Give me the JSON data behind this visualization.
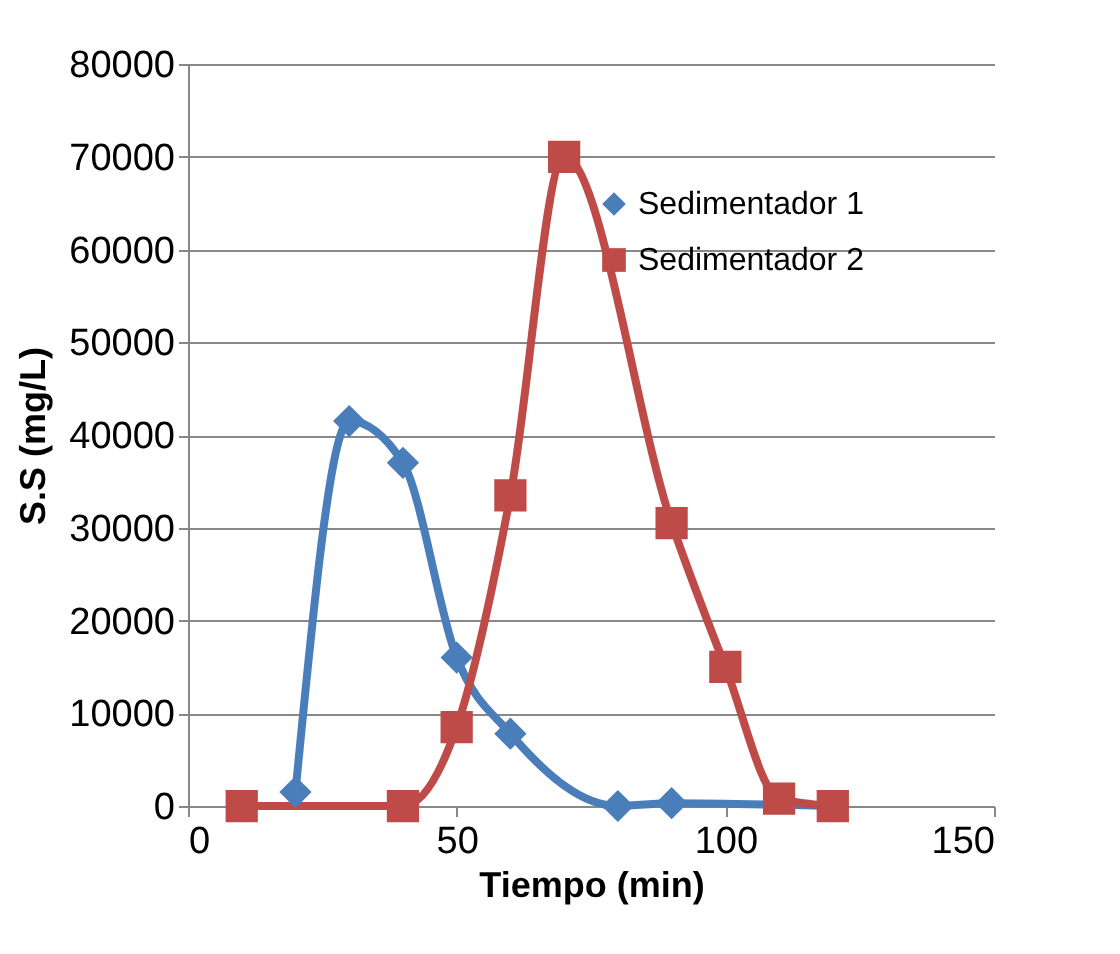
{
  "chart_data": {
    "type": "line",
    "xlabel": "Tiempo (min)",
    "ylabel": "S.S (mg/L)",
    "xlim": [
      0,
      150
    ],
    "xticks": [
      0,
      50,
      100,
      150
    ],
    "ylim": [
      0,
      80000
    ],
    "yticks": [
      0,
      10000,
      20000,
      30000,
      40000,
      50000,
      60000,
      70000,
      80000
    ],
    "grid": "y",
    "legend": "top right",
    "series": [
      {
        "name": "Sedimentador 1",
        "color": "#4a7ebb",
        "marker": "diamond",
        "x": [
          20,
          30,
          40,
          50,
          60,
          80,
          90,
          120
        ],
        "values": [
          1500,
          41500,
          37000,
          16000,
          7800,
          0,
          300,
          0
        ]
      },
      {
        "name": "Sedimentador 2",
        "color": "#be4b48",
        "marker": "square",
        "x": [
          10,
          40,
          50,
          60,
          70,
          90,
          100,
          110,
          120
        ],
        "values": [
          0,
          0,
          8500,
          33500,
          70000,
          30500,
          15000,
          800,
          0
        ]
      }
    ]
  }
}
